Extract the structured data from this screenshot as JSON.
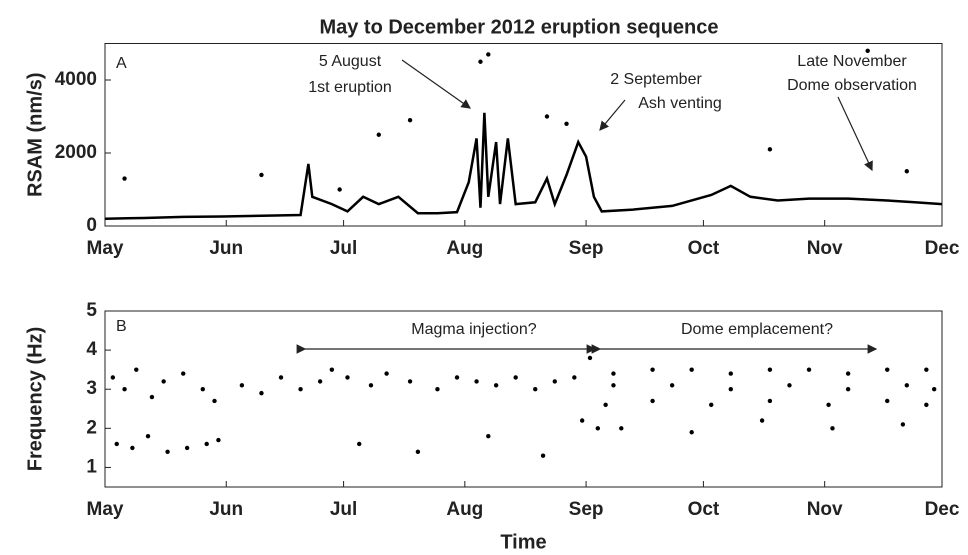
{
  "chart_data": [
    {
      "type": "line",
      "title": "May to December 2012 eruption sequence",
      "ylabel": "RSAM (nm/s)",
      "panel_label": "A",
      "xlim": [
        0,
        214
      ],
      "xticks": [
        {
          "value": 0,
          "label": "May"
        },
        {
          "value": 31,
          "label": "Jun"
        },
        {
          "value": 61,
          "label": "Jul"
        },
        {
          "value": 92,
          "label": "Aug"
        },
        {
          "value": 123,
          "label": "Sep"
        },
        {
          "value": 153,
          "label": "Oct"
        },
        {
          "value": 184,
          "label": "Nov"
        },
        {
          "value": 214,
          "label": "Dec"
        }
      ],
      "ylim": [
        0,
        5000
      ],
      "yticks": [
        0,
        2000,
        4000
      ],
      "annotations": [
        "5 August",
        "1st eruption",
        "2 September",
        "Ash venting",
        "Late November",
        "Dome observation"
      ],
      "series": [
        {
          "mode": "line",
          "color": "#000000",
          "x": [
            0,
            10,
            20,
            30,
            40,
            50,
            52,
            53,
            58,
            62,
            66,
            70,
            75,
            80,
            85,
            90,
            93,
            95,
            96,
            97,
            98,
            100,
            101,
            103,
            105,
            110,
            113,
            115,
            118,
            121,
            123,
            125,
            127,
            135,
            145,
            155,
            160,
            165,
            172,
            180,
            190,
            200,
            207,
            214
          ],
          "values": [
            200,
            220,
            250,
            260,
            280,
            300,
            1700,
            800,
            600,
            400,
            800,
            600,
            800,
            350,
            350,
            380,
            1200,
            2400,
            500,
            3100,
            800,
            2300,
            600,
            2400,
            600,
            650,
            1300,
            600,
            1400,
            2300,
            1900,
            800,
            400,
            450,
            550,
            850,
            1100,
            800,
            700,
            750,
            750,
            700,
            650,
            600
          ]
        },
        {
          "mode": "markers",
          "color": "#000000",
          "x": [
            5,
            40,
            60,
            70,
            78,
            96,
            98,
            113,
            118,
            170,
            195,
            205
          ],
          "values": [
            1300,
            1400,
            1000,
            2500,
            2900,
            4500,
            4700,
            3000,
            2800,
            2100,
            4800,
            1500
          ]
        }
      ]
    },
    {
      "type": "scatter",
      "ylabel": "Frequency (Hz)",
      "xlabel": "Time",
      "panel_label": "B",
      "xlim": [
        0,
        214
      ],
      "xticks": [
        {
          "value": 0,
          "label": "May"
        },
        {
          "value": 31,
          "label": "Jun"
        },
        {
          "value": 61,
          "label": "Jul"
        },
        {
          "value": 92,
          "label": "Aug"
        },
        {
          "value": 123,
          "label": "Sep"
        },
        {
          "value": 153,
          "label": "Oct"
        },
        {
          "value": 184,
          "label": "Nov"
        },
        {
          "value": 214,
          "label": "Dec"
        }
      ],
      "ylim": [
        0.5,
        5
      ],
      "yticks": [
        1,
        2,
        3,
        4,
        5
      ],
      "annotations": [
        "Magma injection?",
        "Dome emplacement?"
      ],
      "series": [
        {
          "mode": "markers",
          "color": "#000000",
          "x": [
            2,
            5,
            8,
            12,
            15,
            20,
            25,
            28,
            3,
            7,
            11,
            16,
            21,
            26,
            29,
            35,
            40,
            45,
            50,
            55,
            58,
            62,
            68,
            72,
            78,
            85,
            90,
            95,
            100,
            105,
            110,
            115,
            120,
            122,
            124,
            126,
            130,
            140,
            150,
            160,
            170,
            180,
            190,
            200,
            210,
            130,
            145,
            160,
            175,
            190,
            205,
            212,
            128,
            140,
            155,
            170,
            185,
            200,
            210,
            132,
            150,
            168,
            186,
            204,
            65,
            80,
            98,
            112
          ],
          "values": [
            3.3,
            3.0,
            3.5,
            2.8,
            3.2,
            3.4,
            3.0,
            2.7,
            1.6,
            1.5,
            1.8,
            1.4,
            1.5,
            1.6,
            1.7,
            3.1,
            2.9,
            3.3,
            3.0,
            3.2,
            3.5,
            3.3,
            3.1,
            3.4,
            3.2,
            3.0,
            3.3,
            3.2,
            3.1,
            3.3,
            3.0,
            3.2,
            3.3,
            2.2,
            3.8,
            2.0,
            3.4,
            3.5,
            3.5,
            3.4,
            3.5,
            3.5,
            3.4,
            3.5,
            3.5,
            3.1,
            3.1,
            3.0,
            3.1,
            3.0,
            3.1,
            3.0,
            2.6,
            2.7,
            2.6,
            2.7,
            2.6,
            2.7,
            2.6,
            2.0,
            1.9,
            2.2,
            2.0,
            2.1,
            1.6,
            1.4,
            1.8,
            1.3
          ]
        }
      ]
    }
  ]
}
